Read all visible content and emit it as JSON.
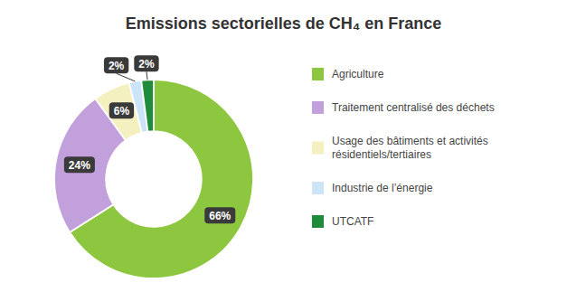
{
  "chart_data": {
    "type": "donut",
    "title": "Emissions sectorielles de CH₄ en France",
    "categories": [
      "Agriculture",
      "Traitement centralisé des déchets",
      "Usage des bâtiments et activités\nrésidentiels/tertiaires",
      "Industrie de l’énergie",
      "UTCATF"
    ],
    "values": [
      66,
      24,
      6,
      2,
      2
    ],
    "value_labels": [
      "66%",
      "24%",
      "6%",
      "2%",
      "2%"
    ],
    "colors": [
      "#8dc63f",
      "#c2a0dc",
      "#f5f0c0",
      "#cce4f7",
      "#1e8c3a"
    ],
    "data_labels": true,
    "legend": "right"
  }
}
